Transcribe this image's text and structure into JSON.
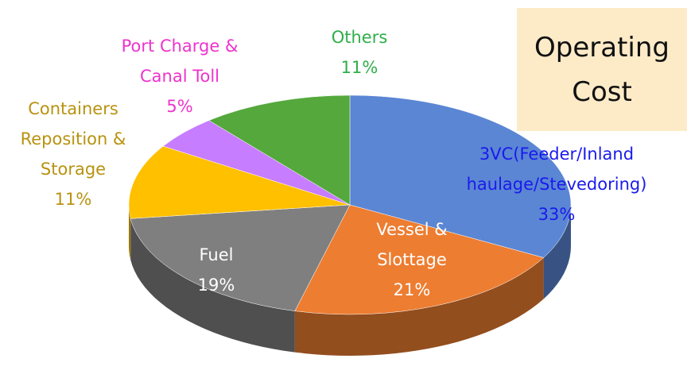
{
  "chart_data": {
    "type": "pie",
    "title": "Operating Cost",
    "categories": [
      "3VC(Feeder/Inland haulage/Stevedoring)",
      "Vessel & Slottage",
      "Fuel",
      "Containers Reposition & Storage",
      "Port Charge & Canal Toll",
      "Others"
    ],
    "values": [
      33,
      21,
      19,
      11,
      5,
      11
    ],
    "value_labels": [
      "33%",
      "21%",
      "19%",
      "11%",
      "5%",
      "11%"
    ],
    "colors": [
      "#5b86d3",
      "#ed7d31",
      "#7f7f7f",
      "#ffc000",
      "#c77dff",
      "#55a83c"
    ]
  }
}
